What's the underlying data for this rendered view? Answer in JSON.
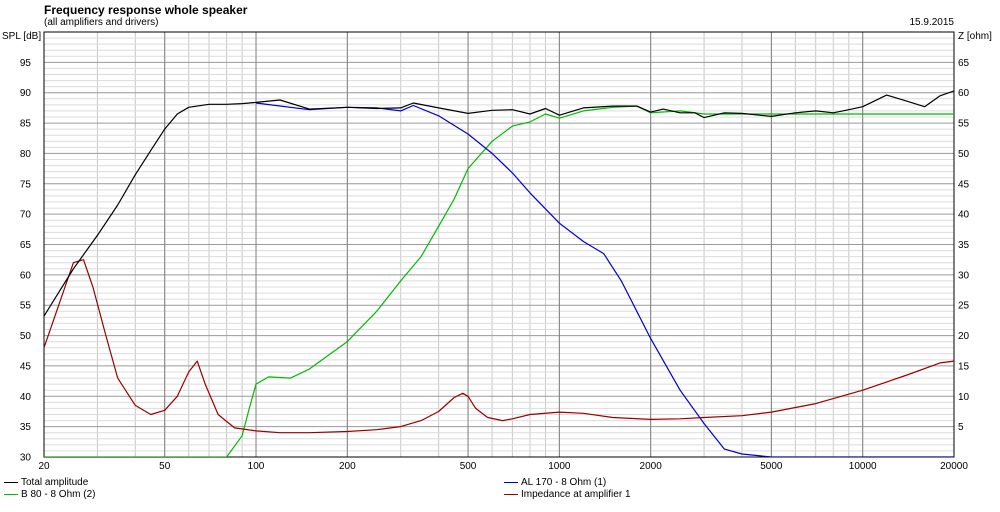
{
  "header": {
    "title": "Frequency response whole speaker",
    "subtitle": "(all amplifiers and drivers)",
    "date": "15.9.2015"
  },
  "chart_data": {
    "type": "line",
    "title": "Frequency response whole speaker",
    "subtitle": "(all amplifiers and drivers)",
    "xlabel": "",
    "ylabel": "SPL [dB]",
    "y2label": "Z [ohm]",
    "xscale": "log",
    "xlim": [
      20,
      20000
    ],
    "ylim": [
      30,
      100
    ],
    "y2lim": [
      0,
      70
    ],
    "grid": true,
    "legend_position": "bottom",
    "x_ticks": [
      "20",
      "50",
      "100",
      "200",
      "500",
      "1000",
      "2000",
      "5000",
      "10000",
      "20000"
    ],
    "y_ticks": [
      "30",
      "35",
      "40",
      "45",
      "50",
      "55",
      "60",
      "65",
      "70",
      "75",
      "80",
      "85",
      "90",
      "95"
    ],
    "y2_ticks": [
      "5",
      "10",
      "15",
      "20",
      "25",
      "30",
      "35",
      "40",
      "45",
      "50",
      "55",
      "60",
      "65"
    ],
    "series": [
      {
        "name": "Total amplitude",
        "color": "#000000",
        "axis": "left",
        "x": [
          20,
          25,
          30,
          35,
          40,
          45,
          50,
          55,
          60,
          70,
          80,
          90,
          100,
          120,
          150,
          200,
          250,
          300,
          330,
          400,
          500,
          600,
          700,
          800,
          900,
          1000,
          1200,
          1500,
          1800,
          2000,
          2200,
          2500,
          2800,
          3000,
          3500,
          4000,
          5000,
          6000,
          7000,
          8000,
          9000,
          10000,
          12000,
          14000,
          16000,
          18000,
          20000
        ],
        "y": [
          53.2,
          61,
          66.5,
          71.5,
          76.5,
          80.5,
          84,
          86.5,
          87.6,
          88.1,
          88.1,
          88.2,
          88.4,
          88.8,
          87.3,
          87.6,
          87.4,
          87.5,
          88.3,
          87.5,
          86.6,
          87.1,
          87.2,
          86.5,
          87.4,
          86.3,
          87.5,
          87.8,
          87.8,
          86.8,
          87.3,
          86.7,
          86.7,
          85.9,
          86.7,
          86.6,
          86.1,
          86.7,
          87.0,
          86.7,
          87.2,
          87.7,
          89.6,
          88.6,
          87.7,
          89.5,
          90.3
        ]
      },
      {
        "name": "AL 170 - 8 Ohm (1)",
        "color": "#0000cc",
        "axis": "left",
        "x": [
          100,
          150,
          200,
          250,
          300,
          330,
          400,
          500,
          600,
          700,
          800,
          1000,
          1200,
          1400,
          1600,
          1800,
          2000,
          2500,
          3000,
          3500,
          4000,
          5000,
          20000
        ],
        "y": [
          88.3,
          87.2,
          87.6,
          87.5,
          87.0,
          87.9,
          86.2,
          83.2,
          80.0,
          76.8,
          73.5,
          68.5,
          65.5,
          63.5,
          59.0,
          54.0,
          49.5,
          41.0,
          35.5,
          31.3,
          30.5,
          30.0,
          30.0
        ]
      },
      {
        "name": "B 80 - 8 Ohm (2)",
        "color": "#00bb00",
        "axis": "left",
        "x": [
          20,
          50,
          80,
          90,
          95,
          100,
          110,
          130,
          150,
          200,
          250,
          300,
          350,
          400,
          450,
          500,
          600,
          700,
          800,
          900,
          1000,
          1200,
          1500,
          1800,
          2000,
          2500,
          3000,
          20000
        ],
        "y": [
          30.0,
          30.0,
          30.0,
          33.5,
          38.0,
          42.0,
          43.2,
          43.0,
          44.5,
          49.0,
          54.0,
          59.0,
          63.0,
          68.0,
          72.5,
          77.5,
          82.0,
          84.5,
          85.2,
          86.5,
          85.8,
          87.0,
          87.6,
          87.8,
          86.7,
          87.0,
          86.5,
          86.5
        ]
      },
      {
        "name": "Impedance at amplifier 1",
        "color": "#990000",
        "axis": "right",
        "x": [
          20,
          22,
          25,
          27,
          29,
          32,
          35,
          40,
          45,
          50,
          55,
          60,
          64,
          68,
          75,
          85,
          100,
          120,
          150,
          200,
          250,
          300,
          350,
          400,
          450,
          480,
          500,
          530,
          580,
          650,
          700,
          800,
          1000,
          1200,
          1500,
          2000,
          2500,
          3000,
          4000,
          5000,
          7000,
          10000,
          14000,
          18000,
          20000
        ],
        "y": [
          18,
          24,
          32,
          32.5,
          28,
          20,
          13,
          8.5,
          7.0,
          7.7,
          10,
          14,
          15.8,
          12,
          7,
          4.8,
          4.3,
          4.0,
          4.0,
          4.2,
          4.5,
          5.0,
          6.0,
          7.5,
          9.8,
          10.5,
          10.0,
          8.0,
          6.5,
          6.0,
          6.3,
          7.0,
          7.4,
          7.2,
          6.5,
          6.2,
          6.3,
          6.5,
          6.8,
          7.4,
          8.8,
          11.0,
          13.5,
          15.5,
          15.8
        ]
      }
    ]
  },
  "legend": {
    "items": [
      {
        "label": "Total amplitude",
        "color": "#000000"
      },
      {
        "label": "B 80 - 8 Ohm (2)",
        "color": "#00bb00"
      },
      {
        "label": "AL 170 - 8 Ohm (1)",
        "color": "#0000cc"
      },
      {
        "label": "Impedance at amplifier 1",
        "color": "#990000"
      }
    ]
  }
}
